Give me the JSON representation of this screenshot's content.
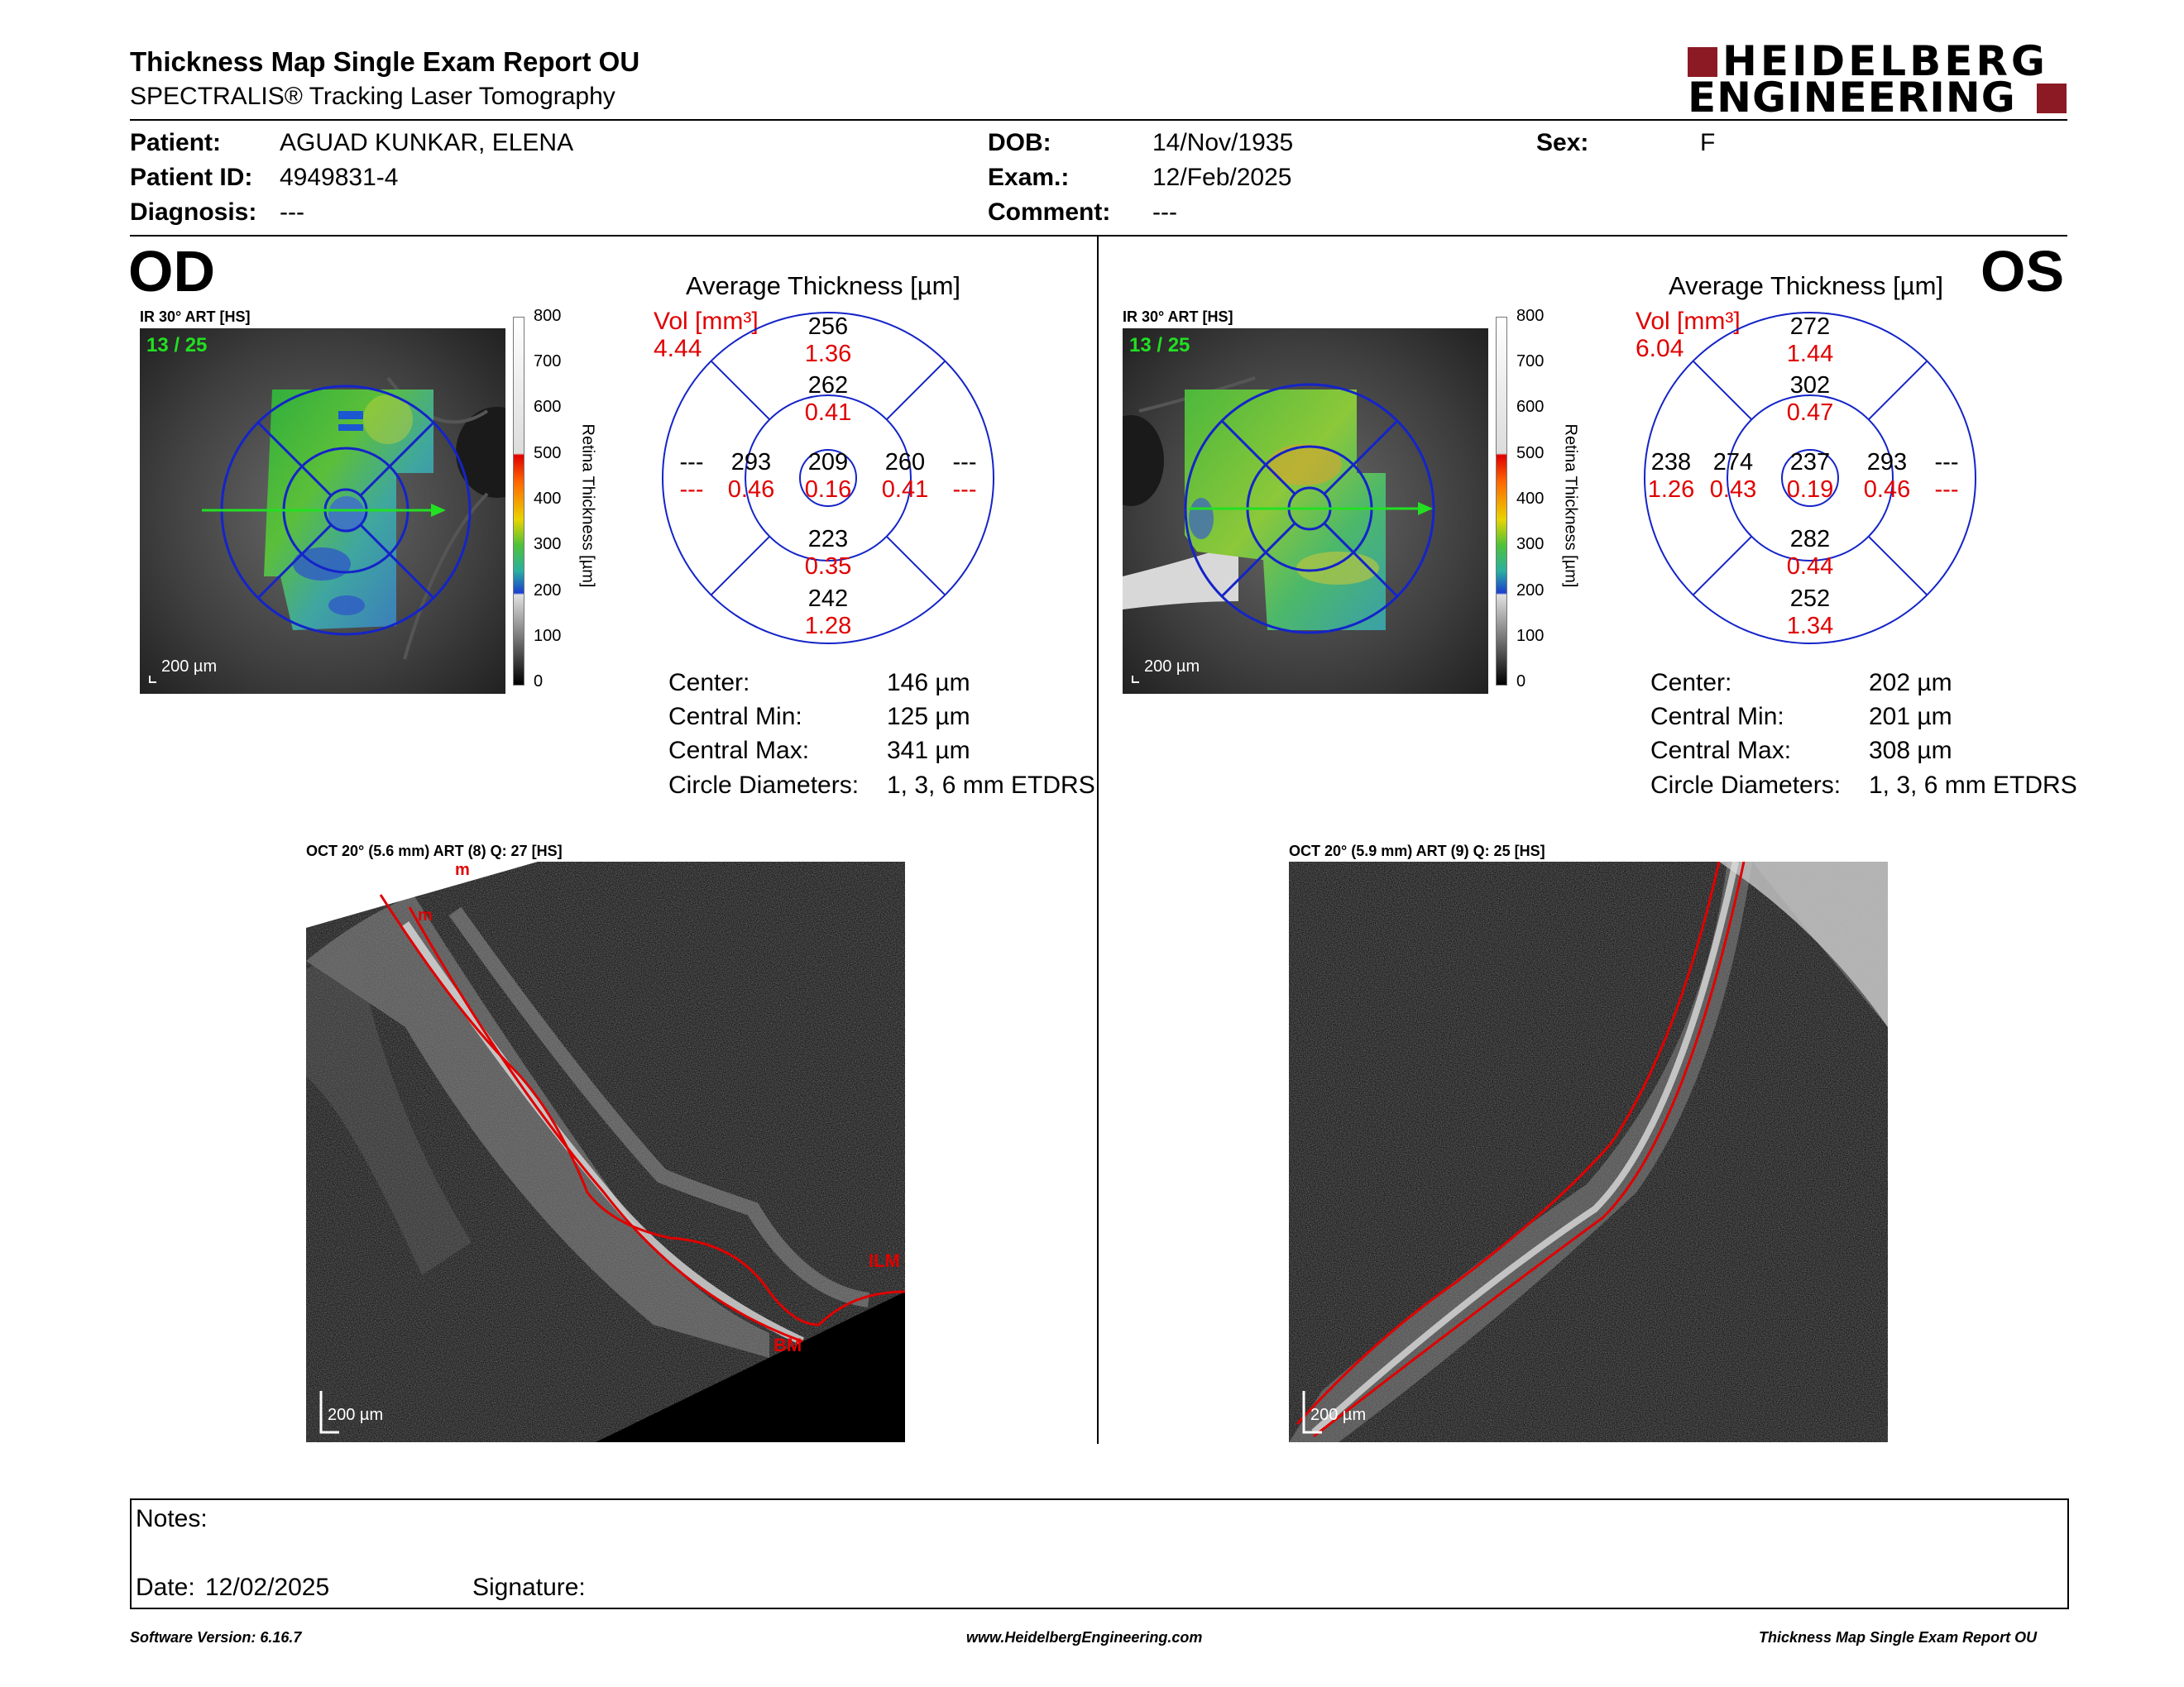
{
  "report": {
    "title": "Thickness Map Single Exam Report OU",
    "subtitle": "SPECTRALIS® Tracking Laser Tomography"
  },
  "brand": {
    "line1": "HEIDELBERG",
    "line2": "ENGINEERING",
    "color": "#8b1a24"
  },
  "patient": {
    "patient_label": "Patient:",
    "patient_value": "AGUAD KUNKAR, ELENA",
    "id_label": "Patient ID:",
    "id_value": "4949831-4",
    "diagnosis_label": "Diagnosis:",
    "diagnosis_value": "---",
    "dob_label": "DOB:",
    "dob_value": "14/Nov/1935",
    "exam_label": "Exam.:",
    "exam_value": "12/Feb/2025",
    "comment_label": "Comment:",
    "comment_value": "---",
    "sex_label": "Sex:",
    "sex_value": "F"
  },
  "colorbar": {
    "title": "Retina Thickness [µm]",
    "ticks": [
      "800",
      "700",
      "600",
      "500",
      "400",
      "300",
      "200",
      "100",
      "0"
    ]
  },
  "od": {
    "eye": "OD",
    "fundus_label": "IR 30° ART [HS]",
    "frame": "13 / 25",
    "scale": "200 µm",
    "avg_title": "Average Thickness [µm]",
    "vol_label": "Vol [mm³]",
    "vol_value": "4.44",
    "grid": {
      "center": {
        "t": "209",
        "v": "0.16"
      },
      "inner_sup": {
        "t": "262",
        "v": "0.41"
      },
      "inner_inf": {
        "t": "223",
        "v": "0.35"
      },
      "inner_tmp": {
        "t": "293",
        "v": "0.46"
      },
      "inner_nas": {
        "t": "260",
        "v": "0.41"
      },
      "outer_sup": {
        "t": "256",
        "v": "1.36"
      },
      "outer_inf": {
        "t": "242",
        "v": "1.28"
      },
      "outer_left": {
        "t": "---",
        "v": "---"
      },
      "outer_right": {
        "t": "---",
        "v": "---"
      }
    },
    "stats": {
      "center_label": "Center:",
      "center_value": "146 µm",
      "min_label": "Central Min:",
      "min_value": "125 µm",
      "max_label": "Central Max:",
      "max_value": "341 µm",
      "diam_label": "Circle Diameters:",
      "diam_value": "1, 3, 6 mm ETDRS"
    },
    "oct_label": "OCT 20° (5.6 mm) ART (8) Q: 27 [HS]",
    "oct_scale": "200 µm",
    "markers": {
      "ilm": "ILM",
      "bm": "BM",
      "m1": "m",
      "m2": "m"
    }
  },
  "os": {
    "eye": "OS",
    "fundus_label": "IR 30° ART [HS]",
    "frame": "13 / 25",
    "scale": "200 µm",
    "avg_title": "Average Thickness [µm]",
    "vol_label": "Vol [mm³]",
    "vol_value": "6.04",
    "grid": {
      "center": {
        "t": "237",
        "v": "0.19"
      },
      "inner_sup": {
        "t": "302",
        "v": "0.47"
      },
      "inner_inf": {
        "t": "282",
        "v": "0.44"
      },
      "inner_left": {
        "t": "274",
        "v": "0.43"
      },
      "inner_right": {
        "t": "293",
        "v": "0.46"
      },
      "outer_sup": {
        "t": "272",
        "v": "1.44"
      },
      "outer_inf": {
        "t": "252",
        "v": "1.34"
      },
      "outer_left": {
        "t": "238",
        "v": "1.26"
      },
      "outer_right": {
        "t": "---",
        "v": "---"
      }
    },
    "stats": {
      "center_label": "Center:",
      "center_value": "202 µm",
      "min_label": "Central Min:",
      "min_value": "201 µm",
      "max_label": "Central Max:",
      "max_value": "308 µm",
      "diam_label": "Circle Diameters:",
      "diam_value": "1, 3, 6 mm ETDRS"
    },
    "oct_label": "OCT 20° (5.9 mm) ART (9) Q: 25 [HS]",
    "oct_scale": "200 µm"
  },
  "notes": {
    "notes_label": "Notes:",
    "date_label": "Date:",
    "date_value": "12/02/2025",
    "signature_label": "Signature:"
  },
  "footer": {
    "left": "Software Version: 6.16.7",
    "center": "www.HeidelbergEngineering.com",
    "right": "Thickness Map Single Exam Report OU"
  }
}
